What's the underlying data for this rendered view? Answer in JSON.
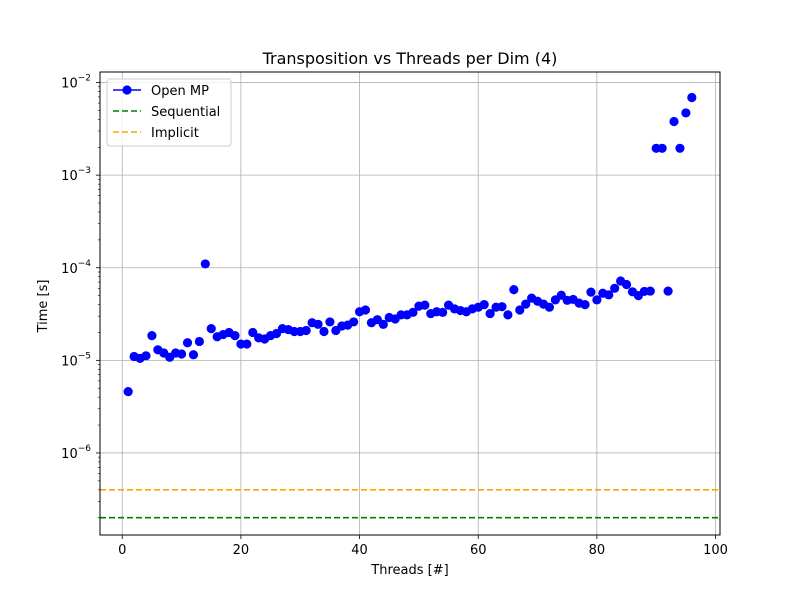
{
  "chart_data": {
    "type": "scatter",
    "title": "Transposition vs Threads per Dim (4)",
    "xlabel": "Threads [#]",
    "ylabel": "Time [s]",
    "xlim": [
      -3.75,
      100.75
    ],
    "ylim": [
      1.3e-07,
      0.013
    ],
    "yscale": "log",
    "grid": true,
    "legend_position": "top-left",
    "x_ticks": [
      0,
      20,
      40,
      60,
      80,
      100
    ],
    "x_tick_labels": [
      "0",
      "20",
      "40",
      "60",
      "80",
      "100"
    ],
    "y_ticks": [
      1e-06,
      1e-05,
      0.0001,
      0.001,
      0.01
    ],
    "y_tick_labels": [
      {
        "base": "10",
        "exp": "−6"
      },
      {
        "base": "10",
        "exp": "−5"
      },
      {
        "base": "10",
        "exp": "−4"
      },
      {
        "base": "10",
        "exp": "−3"
      },
      {
        "base": "10",
        "exp": "−2"
      }
    ],
    "series": [
      {
        "name": "Open MP",
        "color": "#0000ff",
        "style": "marker",
        "x": [
          1,
          2,
          3,
          4,
          5,
          6,
          7,
          8,
          9,
          10,
          11,
          12,
          13,
          14,
          15,
          16,
          17,
          18,
          19,
          20,
          21,
          22,
          23,
          24,
          25,
          26,
          27,
          28,
          29,
          30,
          31,
          32,
          33,
          34,
          35,
          36,
          37,
          38,
          39,
          40,
          41,
          42,
          43,
          44,
          45,
          46,
          47,
          48,
          49,
          50,
          51,
          52,
          53,
          54,
          55,
          56,
          57,
          58,
          59,
          60,
          61,
          62,
          63,
          64,
          65,
          66,
          67,
          68,
          69,
          70,
          71,
          72,
          73,
          74,
          75,
          76,
          77,
          78,
          79,
          80,
          81,
          82,
          83,
          84,
          85,
          86,
          87,
          88,
          89,
          90,
          91,
          92,
          93,
          94,
          95,
          96
        ],
        "y": [
          4.6e-06,
          1.1e-05,
          1.05e-05,
          1.12e-05,
          1.85e-05,
          1.3e-05,
          1.2e-05,
          1.08e-05,
          1.2e-05,
          1.17e-05,
          1.55e-05,
          1.15e-05,
          1.6e-05,
          0.00011,
          2.2e-05,
          1.8e-05,
          1.9e-05,
          2e-05,
          1.85e-05,
          1.5e-05,
          1.5e-05,
          2e-05,
          1.75e-05,
          1.7e-05,
          1.85e-05,
          1.95e-05,
          2.2e-05,
          2.15e-05,
          2.05e-05,
          2.05e-05,
          2.1e-05,
          2.55e-05,
          2.45e-05,
          2.05e-05,
          2.6e-05,
          2.1e-05,
          2.35e-05,
          2.4e-05,
          2.6e-05,
          3.35e-05,
          3.5e-05,
          2.55e-05,
          2.75e-05,
          2.45e-05,
          2.9e-05,
          2.8e-05,
          3.1e-05,
          3.1e-05,
          3.3e-05,
          3.85e-05,
          3.95e-05,
          3.2e-05,
          3.35e-05,
          3.3e-05,
          3.95e-05,
          3.6e-05,
          3.45e-05,
          3.35e-05,
          3.6e-05,
          3.75e-05,
          4e-05,
          3.2e-05,
          3.75e-05,
          3.8e-05,
          3.1e-05,
          5.8e-05,
          3.5e-05,
          4.05e-05,
          4.7e-05,
          4.35e-05,
          4.05e-05,
          3.75e-05,
          4.5e-05,
          5.05e-05,
          4.45e-05,
          4.55e-05,
          4.15e-05,
          4e-05,
          5.45e-05,
          4.5e-05,
          5.3e-05,
          5.1e-05,
          6e-05,
          7.2e-05,
          6.6e-05,
          5.5e-05,
          5e-05,
          5.55e-05,
          5.6e-05,
          0.00195,
          0.00195,
          5.6e-05,
          0.0038,
          0.00195,
          0.0047,
          0.0069
        ]
      },
      {
        "name": "Sequential",
        "color": "#008000",
        "style": "dashed-hline",
        "y": 2e-07
      },
      {
        "name": "Implicit",
        "color": "#ffa500",
        "style": "dashed-hline",
        "y": 4e-07
      }
    ]
  }
}
